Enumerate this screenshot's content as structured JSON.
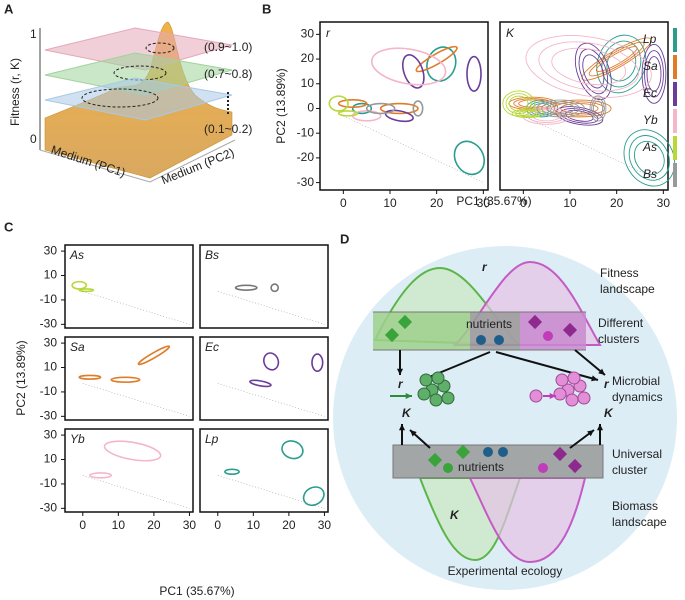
{
  "panels": {
    "a": {
      "label": "A",
      "axis_title": "Fitness (r, K)",
      "ticks": [
        1,
        0
      ],
      "x_axis": "Medium (PC1)",
      "y_axis": "Medium (PC2)",
      "slices": [
        "(0.9~1.0)",
        "(0.7~0.8)",
        "(0.1~0.2)"
      ]
    },
    "b": {
      "label": "B",
      "x_axis": "PC1 (35.67%)",
      "y_axis": "PC2 (13.89%)",
      "xlim": [
        -5,
        31
      ],
      "ylim": [
        -33,
        35
      ],
      "xticks": [
        0,
        10,
        20,
        30
      ],
      "yticks": [
        30,
        20,
        10,
        0,
        -10,
        -20,
        -30
      ],
      "plots": [
        "r",
        "K"
      ],
      "legend": [
        {
          "name": "Lp",
          "color": "#2a9d8f"
        },
        {
          "name": "Sa",
          "color": "#e07b28"
        },
        {
          "name": "Ec",
          "color": "#6a3d9a"
        },
        {
          "name": "Yb",
          "color": "#f4b6c8"
        },
        {
          "name": "As",
          "color": "#b8d838"
        },
        {
          "name": "Bs",
          "color": "#999999"
        }
      ]
    },
    "c": {
      "label": "C",
      "x_axis": "PC1 (35.67%)",
      "y_axis": "PC2 (13.89%)",
      "xlim": [
        -5,
        31
      ],
      "ylim": [
        -33,
        35
      ],
      "xticks": [
        0,
        10,
        20,
        30
      ],
      "yticks": [
        30,
        10,
        -10,
        -30
      ],
      "plots": [
        {
          "name": "As",
          "color": "#b8d838"
        },
        {
          "name": "Bs",
          "color": "#777777"
        },
        {
          "name": "Sa",
          "color": "#e07b28"
        },
        {
          "name": "Ec",
          "color": "#6a3d9a"
        },
        {
          "name": "Yb",
          "color": "#f4b6c8"
        },
        {
          "name": "Lp",
          "color": "#2a9d8f"
        }
      ]
    },
    "d": {
      "label": "D",
      "r": "r",
      "K": "K",
      "fitness": [
        "Fitness",
        "landscape"
      ],
      "clusters": [
        "Different",
        "clusters"
      ],
      "dynamics": [
        "Microbial",
        "dynamics"
      ],
      "universal": [
        "Universal",
        "cluster"
      ],
      "biomass": [
        "Biomass",
        "landscape"
      ],
      "nutrients": "nutrients",
      "footer": "Experimental ecology"
    }
  }
}
